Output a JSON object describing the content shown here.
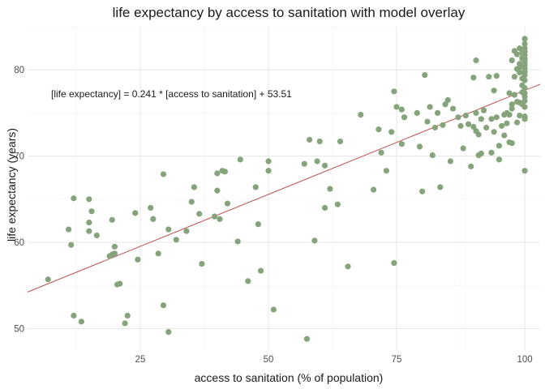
{
  "chart_data": {
    "type": "scatter",
    "title": "life expectancy by access to sanitation with model overlay",
    "xlabel": "access to sanitation (% of population)",
    "ylabel": "life expectancy (years)",
    "xlim": [
      3,
      103
    ],
    "ylim": [
      47.5,
      85
    ],
    "x_ticks": [
      25,
      50,
      75,
      100
    ],
    "y_ticks": [
      50,
      60,
      70,
      80
    ],
    "grid": true,
    "point_color": "#86a47c",
    "line_color": "#c0504d",
    "annotation": "[life expectancy] = 0.241 * [access to sanitation] + 53.51",
    "model": {
      "slope": 0.241,
      "intercept": 53.51
    },
    "points": [
      [
        7,
        55.7
      ],
      [
        11,
        61.5
      ],
      [
        11.5,
        59.7
      ],
      [
        12,
        51.5
      ],
      [
        12,
        65.1
      ],
      [
        13.5,
        50.8
      ],
      [
        15,
        61.3
      ],
      [
        15,
        62.3
      ],
      [
        15,
        65
      ],
      [
        15.5,
        63.6
      ],
      [
        16.5,
        60.8
      ],
      [
        19,
        58.4
      ],
      [
        19.5,
        58.6
      ],
      [
        19.5,
        62.6
      ],
      [
        20,
        59.5
      ],
      [
        20,
        58.7
      ],
      [
        20.5,
        55.1
      ],
      [
        21,
        55.2
      ],
      [
        22,
        50.6
      ],
      [
        22.5,
        51.5
      ],
      [
        24,
        63.4
      ],
      [
        24.5,
        58
      ],
      [
        27,
        64
      ],
      [
        27.5,
        62.7
      ],
      [
        28.5,
        58.7
      ],
      [
        29.5,
        52.7
      ],
      [
        29.5,
        67.9
      ],
      [
        30.5,
        61.5
      ],
      [
        30.5,
        49.6
      ],
      [
        32,
        60.3
      ],
      [
        34,
        61.3
      ],
      [
        35,
        64.7
      ],
      [
        35.5,
        66.4
      ],
      [
        36.5,
        63.3
      ],
      [
        37,
        57.5
      ],
      [
        39.5,
        63
      ],
      [
        40,
        66
      ],
      [
        40,
        68
      ],
      [
        40.5,
        62.7
      ],
      [
        41,
        68.3
      ],
      [
        41.5,
        68.2
      ],
      [
        42,
        64.5
      ],
      [
        44,
        60.1
      ],
      [
        44.5,
        69.6
      ],
      [
        46,
        55.5
      ],
      [
        47.5,
        66.4
      ],
      [
        48,
        62.1
      ],
      [
        48.5,
        56.7
      ],
      [
        50,
        68.3
      ],
      [
        50,
        69.4
      ],
      [
        51,
        52.2
      ],
      [
        57,
        69.1
      ],
      [
        57.5,
        48.8
      ],
      [
        58,
        71.9
      ],
      [
        59,
        60.2
      ],
      [
        59.5,
        69.4
      ],
      [
        60,
        71.7
      ],
      [
        61,
        64
      ],
      [
        61,
        68.9
      ],
      [
        62,
        66.2
      ],
      [
        63.5,
        64.4
      ],
      [
        64,
        71.7
      ],
      [
        65.5,
        57.2
      ],
      [
        68,
        74.8
      ],
      [
        70.5,
        66.1
      ],
      [
        71.5,
        73.1
      ],
      [
        72,
        70.4
      ],
      [
        73,
        68.3
      ],
      [
        74,
        72.8
      ],
      [
        74.5,
        57.6
      ],
      [
        74.5,
        77.5
      ],
      [
        75,
        75.7
      ],
      [
        76,
        75.4
      ],
      [
        76,
        71.4
      ],
      [
        76.5,
        74.5
      ],
      [
        79,
        75
      ],
      [
        79.5,
        71.1
      ],
      [
        80,
        65.9
      ],
      [
        80.5,
        79.4
      ],
      [
        81,
        74
      ],
      [
        81.5,
        75.7
      ],
      [
        82,
        70.1
      ],
      [
        82.5,
        73.3
      ],
      [
        83,
        75
      ],
      [
        83.5,
        66.4
      ],
      [
        84,
        73.6
      ],
      [
        84.5,
        76
      ],
      [
        85,
        76.5
      ],
      [
        85.5,
        69.4
      ],
      [
        86,
        75.5
      ],
      [
        87,
        74.5
      ],
      [
        87.5,
        73.5
      ],
      [
        88,
        70.9
      ],
      [
        88.5,
        74.7
      ],
      [
        89,
        73.7
      ],
      [
        89.5,
        68.8
      ],
      [
        90,
        73.4
      ],
      [
        90,
        79.1
      ],
      [
        90.5,
        81.1
      ],
      [
        90.5,
        72.9
      ],
      [
        90.5,
        75
      ],
      [
        91,
        70.1
      ],
      [
        91,
        72.5
      ],
      [
        91.5,
        70.3
      ],
      [
        91.5,
        74.3
      ],
      [
        92,
        75.3
      ],
      [
        92.5,
        73.3
      ],
      [
        93,
        79.2
      ],
      [
        93.5,
        70.4
      ],
      [
        93.5,
        74.3
      ],
      [
        94,
        77.6
      ],
      [
        94,
        72.8
      ],
      [
        94.5,
        74.5
      ],
      [
        94.5,
        79.3
      ],
      [
        95,
        71.2
      ],
      [
        95,
        69.6
      ],
      [
        95.5,
        73.5
      ],
      [
        96,
        72.4
      ],
      [
        96,
        74.8
      ],
      [
        96.5,
        73.8
      ],
      [
        96.5,
        75
      ],
      [
        97,
        77.3
      ],
      [
        97,
        74.8
      ],
      [
        97,
        71.6
      ],
      [
        97.5,
        81.1
      ],
      [
        97.5,
        76
      ],
      [
        97.5,
        75.5
      ],
      [
        97.5,
        71.5
      ],
      [
        98,
        82.2
      ],
      [
        98,
        79.2
      ],
      [
        98,
        77.1
      ],
      [
        98.5,
        81.8
      ],
      [
        98.5,
        76.3
      ],
      [
        98.5,
        80.1
      ],
      [
        98.5,
        73.9
      ],
      [
        99,
        82.5
      ],
      [
        99,
        80.3
      ],
      [
        99,
        79.7
      ],
      [
        99,
        76.2
      ],
      [
        99,
        74.7
      ],
      [
        99,
        80.7
      ],
      [
        99.5,
        82
      ],
      [
        99.5,
        81.3
      ],
      [
        99.5,
        80.4
      ],
      [
        99.5,
        79
      ],
      [
        99.5,
        78.2
      ],
      [
        99.5,
        77.4
      ],
      [
        99.5,
        76
      ],
      [
        99.5,
        81.4
      ],
      [
        99.5,
        82.3
      ],
      [
        100,
        83.6
      ],
      [
        100,
        83
      ],
      [
        100,
        82.5
      ],
      [
        100,
        82.1
      ],
      [
        100,
        81.7
      ],
      [
        100,
        81.3
      ],
      [
        100,
        81
      ],
      [
        100,
        80.6
      ],
      [
        100,
        80.2
      ],
      [
        100,
        79.8
      ],
      [
        100,
        79.4
      ],
      [
        100,
        78.8
      ],
      [
        100,
        77.9
      ],
      [
        100,
        77.3
      ],
      [
        100,
        76.9
      ],
      [
        100,
        76.4
      ],
      [
        100,
        75.7
      ],
      [
        100,
        74.3
      ],
      [
        100,
        74.6
      ],
      [
        100,
        68.3
      ]
    ]
  }
}
